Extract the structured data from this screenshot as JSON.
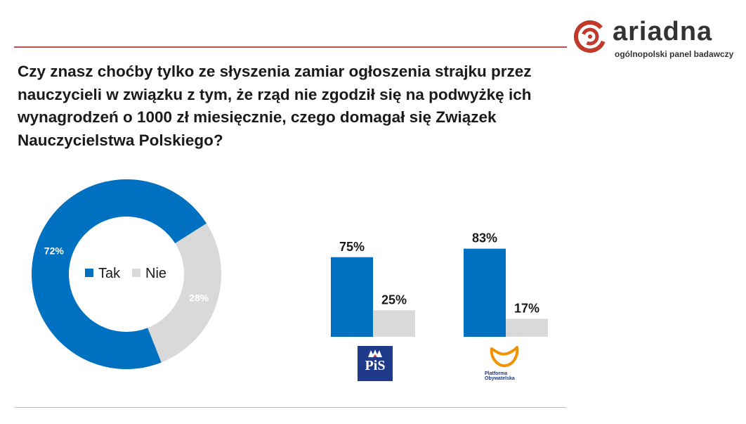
{
  "question": "Czy znasz choćby tylko ze słyszenia zamiar ogłoszenia strajku przez nauczycieli w związku z tym, że rząd nie zgodził się na podwyżkę ich wynagrodzeń o 1000 zł miesięcznie, czego domagał się Związek Nauczycielstwa Polskiego?",
  "brand": {
    "name": "ariadna",
    "tagline": "ogólnopolski panel badawczy",
    "color": "#c0392b"
  },
  "colors": {
    "tak": "#0070c0",
    "nie": "#d9d9d9",
    "text": "#1a1a1a"
  },
  "chart_data": [
    {
      "type": "pie",
      "donut": true,
      "categories": [
        "Tak",
        "Nie"
      ],
      "values": [
        72,
        28
      ],
      "labels": [
        "72%",
        "28%"
      ],
      "legend": "center"
    },
    {
      "type": "bar",
      "categories": [
        "PiS",
        "Platforma Obywatelska"
      ],
      "series": [
        {
          "name": "Tak",
          "values": [
            75,
            83
          ]
        },
        {
          "name": "Nie",
          "values": [
            25,
            17
          ]
        }
      ],
      "labels": [
        [
          "75%",
          "25%"
        ],
        [
          "83%",
          "17%"
        ]
      ],
      "ylim": [
        0,
        100
      ]
    }
  ],
  "party_logos": {
    "pis": {
      "icon": "pis-logo",
      "text": "PiS"
    },
    "po": {
      "icon": "po-logo",
      "text": "Platforma\nObywatelska"
    }
  }
}
